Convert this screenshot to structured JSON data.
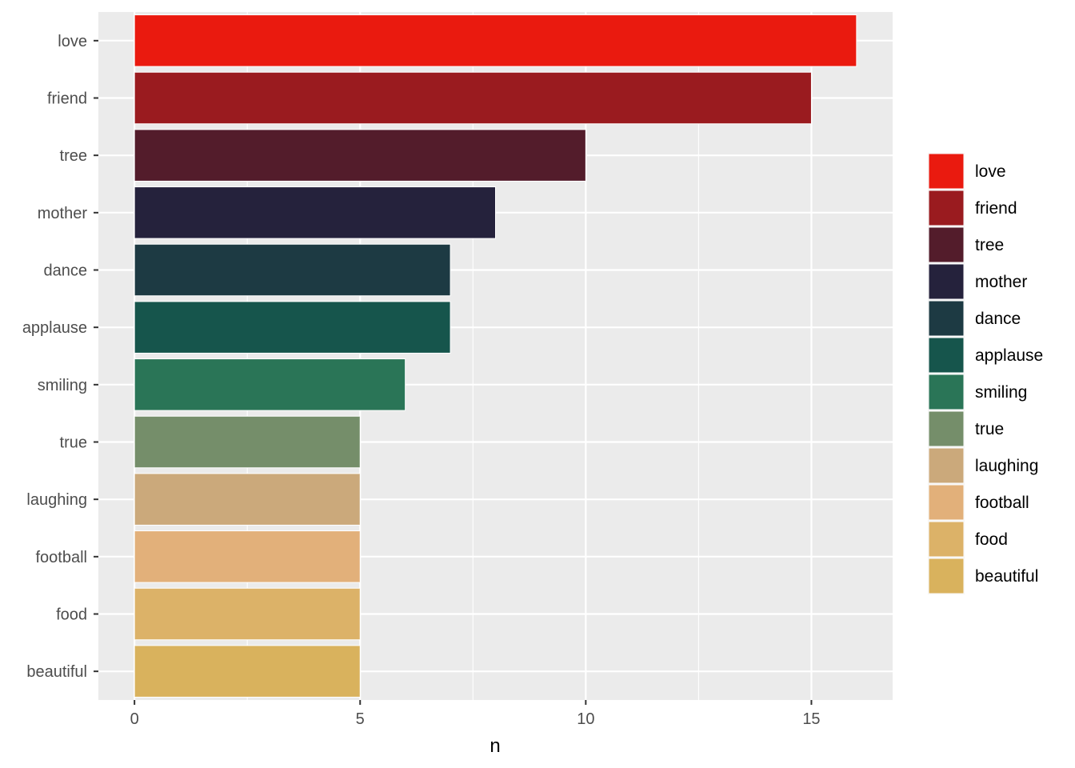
{
  "chart_data": {
    "type": "bar",
    "orientation": "horizontal",
    "categories": [
      "love",
      "friend",
      "tree",
      "mother",
      "dance",
      "applause",
      "smiling",
      "true",
      "laughing",
      "football",
      "food",
      "beautiful"
    ],
    "values": [
      16,
      15,
      10,
      8,
      7,
      7,
      6,
      5,
      5,
      5,
      5,
      5
    ],
    "colors": [
      "#ea1a0f",
      "#9a1b1f",
      "#531c2b",
      "#25223c",
      "#1d3a43",
      "#16554c",
      "#2a7557",
      "#758e6a",
      "#cba97b",
      "#e2b07a",
      "#dcb268",
      "#d9b25d"
    ],
    "xlabel": "n",
    "ylabel": "",
    "xlim": [
      -0.8,
      16.8
    ],
    "x_ticks": [
      0,
      5,
      10,
      15
    ],
    "grid": true,
    "legend": {
      "position": "right",
      "entries": [
        "love",
        "friend",
        "tree",
        "mother",
        "dance",
        "applause",
        "smiling",
        "true",
        "laughing",
        "football",
        "food",
        "beautiful"
      ]
    }
  }
}
